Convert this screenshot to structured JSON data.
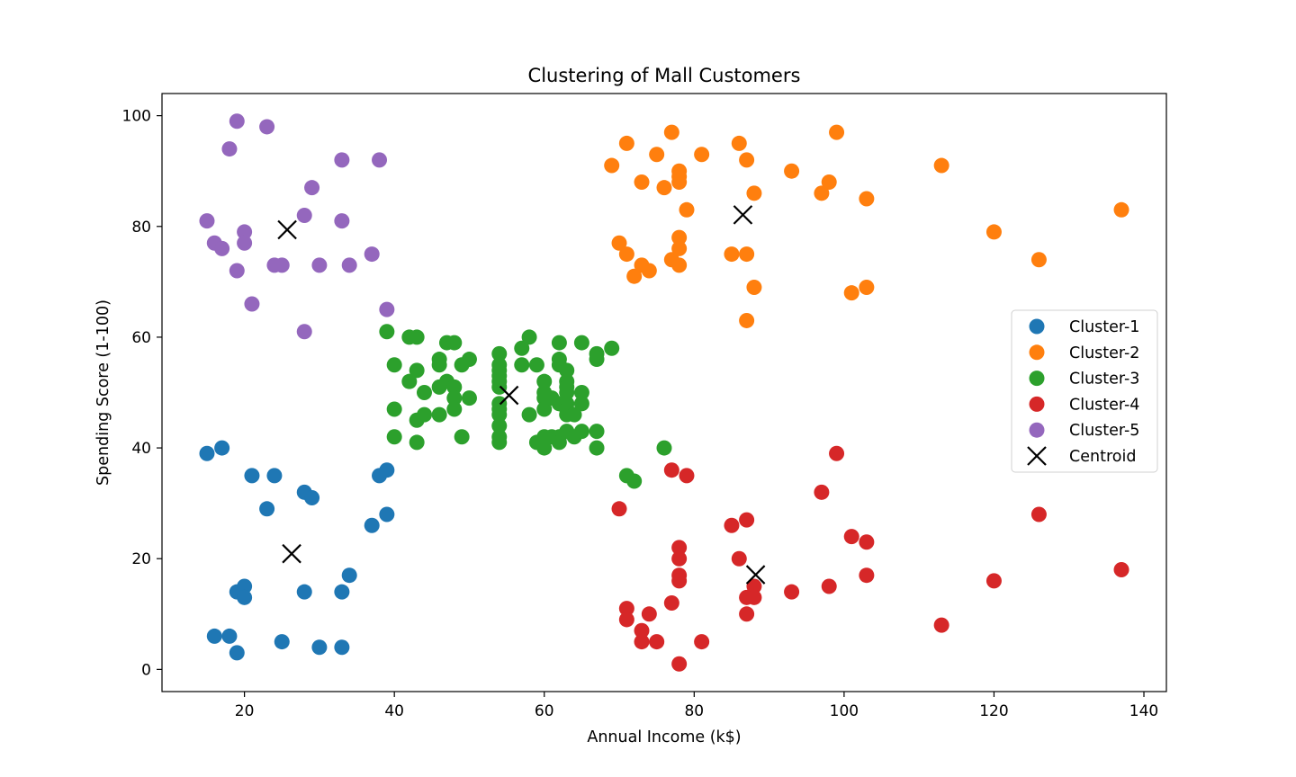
{
  "chart_data": {
    "type": "scatter",
    "title": "Clustering of Mall Customers",
    "xlabel": "Annual Income (k$)",
    "ylabel": "Spending Score (1-100)",
    "xlim": [
      9,
      143
    ],
    "ylim": [
      -4,
      104
    ],
    "xticks": [
      "20",
      "40",
      "60",
      "80",
      "100",
      "120",
      "140"
    ],
    "yticks": [
      "0",
      "20",
      "40",
      "60",
      "80",
      "100"
    ],
    "grid": false,
    "legend_position": "center-right",
    "series": [
      {
        "name": "Cluster-1",
        "color": "#1f77b4",
        "points": [
          [
            15,
            39
          ],
          [
            16,
            6
          ],
          [
            17,
            40
          ],
          [
            18,
            6
          ],
          [
            19,
            3
          ],
          [
            19,
            14
          ],
          [
            20,
            15
          ],
          [
            20,
            13
          ],
          [
            21,
            35
          ],
          [
            23,
            29
          ],
          [
            24,
            35
          ],
          [
            25,
            5
          ],
          [
            28,
            32
          ],
          [
            28,
            14
          ],
          [
            29,
            31
          ],
          [
            30,
            4
          ],
          [
            33,
            4
          ],
          [
            33,
            14
          ],
          [
            34,
            17
          ],
          [
            37,
            26
          ],
          [
            38,
            35
          ],
          [
            39,
            36
          ],
          [
            39,
            28
          ]
        ]
      },
      {
        "name": "Cluster-2",
        "color": "#ff7f0e",
        "points": [
          [
            69,
            91
          ],
          [
            70,
            77
          ],
          [
            71,
            95
          ],
          [
            71,
            75
          ],
          [
            72,
            71
          ],
          [
            73,
            88
          ],
          [
            73,
            73
          ],
          [
            74,
            72
          ],
          [
            75,
            93
          ],
          [
            76,
            87
          ],
          [
            77,
            97
          ],
          [
            77,
            74
          ],
          [
            78,
            90
          ],
          [
            78,
            89
          ],
          [
            78,
            88
          ],
          [
            78,
            78
          ],
          [
            78,
            76
          ],
          [
            78,
            73
          ],
          [
            79,
            83
          ],
          [
            81,
            93
          ],
          [
            85,
            75
          ],
          [
            86,
            95
          ],
          [
            87,
            92
          ],
          [
            87,
            75
          ],
          [
            87,
            63
          ],
          [
            88,
            86
          ],
          [
            88,
            69
          ],
          [
            93,
            90
          ],
          [
            97,
            86
          ],
          [
            98,
            88
          ],
          [
            99,
            97
          ],
          [
            101,
            68
          ],
          [
            103,
            85
          ],
          [
            103,
            69
          ],
          [
            113,
            91
          ],
          [
            120,
            79
          ],
          [
            126,
            74
          ],
          [
            137,
            83
          ]
        ]
      },
      {
        "name": "Cluster-3",
        "color": "#2ca02c",
        "points": [
          [
            39,
            61
          ],
          [
            40,
            55
          ],
          [
            40,
            47
          ],
          [
            40,
            42
          ],
          [
            42,
            60
          ],
          [
            42,
            52
          ],
          [
            43,
            60
          ],
          [
            43,
            54
          ],
          [
            43,
            45
          ],
          [
            43,
            41
          ],
          [
            44,
            50
          ],
          [
            44,
            46
          ],
          [
            46,
            56
          ],
          [
            46,
            55
          ],
          [
            46,
            51
          ],
          [
            46,
            46
          ],
          [
            47,
            59
          ],
          [
            47,
            52
          ],
          [
            48,
            59
          ],
          [
            48,
            51
          ],
          [
            48,
            49
          ],
          [
            48,
            47
          ],
          [
            49,
            55
          ],
          [
            49,
            42
          ],
          [
            50,
            56
          ],
          [
            50,
            49
          ],
          [
            54,
            57
          ],
          [
            54,
            55
          ],
          [
            54,
            54
          ],
          [
            54,
            53
          ],
          [
            54,
            52
          ],
          [
            54,
            51
          ],
          [
            54,
            48
          ],
          [
            54,
            47
          ],
          [
            54,
            46
          ],
          [
            54,
            44
          ],
          [
            54,
            42
          ],
          [
            54,
            41
          ],
          [
            57,
            58
          ],
          [
            57,
            55
          ],
          [
            58,
            60
          ],
          [
            58,
            46
          ],
          [
            59,
            55
          ],
          [
            59,
            41
          ],
          [
            60,
            52
          ],
          [
            60,
            50
          ],
          [
            60,
            49
          ],
          [
            60,
            47
          ],
          [
            60,
            42
          ],
          [
            60,
            40
          ],
          [
            61,
            49
          ],
          [
            61,
            42
          ],
          [
            62,
            59
          ],
          [
            62,
            56
          ],
          [
            62,
            55
          ],
          [
            62,
            48
          ],
          [
            62,
            42
          ],
          [
            62,
            41
          ],
          [
            63,
            54
          ],
          [
            63,
            52
          ],
          [
            63,
            51
          ],
          [
            63,
            50
          ],
          [
            63,
            48
          ],
          [
            63,
            47
          ],
          [
            63,
            46
          ],
          [
            63,
            43
          ],
          [
            64,
            46
          ],
          [
            64,
            42
          ],
          [
            65,
            59
          ],
          [
            65,
            50
          ],
          [
            65,
            48
          ],
          [
            65,
            43
          ],
          [
            67,
            57
          ],
          [
            67,
            56
          ],
          [
            67,
            43
          ],
          [
            67,
            40
          ],
          [
            69,
            58
          ],
          [
            71,
            35
          ],
          [
            72,
            34
          ],
          [
            76,
            40
          ]
        ]
      },
      {
        "name": "Cluster-4",
        "color": "#d62728",
        "points": [
          [
            70,
            29
          ],
          [
            71,
            11
          ],
          [
            71,
            9
          ],
          [
            73,
            7
          ],
          [
            73,
            5
          ],
          [
            74,
            10
          ],
          [
            75,
            5
          ],
          [
            77,
            36
          ],
          [
            77,
            12
          ],
          [
            78,
            22
          ],
          [
            78,
            20
          ],
          [
            78,
            17
          ],
          [
            78,
            16
          ],
          [
            78,
            1
          ],
          [
            79,
            35
          ],
          [
            81,
            5
          ],
          [
            85,
            26
          ],
          [
            86,
            20
          ],
          [
            87,
            27
          ],
          [
            87,
            13
          ],
          [
            87,
            10
          ],
          [
            88,
            15
          ],
          [
            88,
            13
          ],
          [
            93,
            14
          ],
          [
            97,
            32
          ],
          [
            98,
            15
          ],
          [
            99,
            39
          ],
          [
            101,
            24
          ],
          [
            103,
            23
          ],
          [
            103,
            17
          ],
          [
            113,
            8
          ],
          [
            120,
            16
          ],
          [
            126,
            28
          ],
          [
            137,
            18
          ]
        ]
      },
      {
        "name": "Cluster-5",
        "color": "#9467bd",
        "points": [
          [
            15,
            81
          ],
          [
            16,
            77
          ],
          [
            17,
            76
          ],
          [
            18,
            94
          ],
          [
            19,
            99
          ],
          [
            19,
            72
          ],
          [
            20,
            79
          ],
          [
            20,
            77
          ],
          [
            21,
            66
          ],
          [
            23,
            98
          ],
          [
            24,
            73
          ],
          [
            25,
            73
          ],
          [
            28,
            82
          ],
          [
            28,
            61
          ],
          [
            29,
            87
          ],
          [
            30,
            73
          ],
          [
            33,
            92
          ],
          [
            33,
            81
          ],
          [
            34,
            73
          ],
          [
            37,
            75
          ],
          [
            38,
            92
          ],
          [
            39,
            65
          ]
        ]
      }
    ],
    "centroids": {
      "name": "Centroid",
      "color": "#000000",
      "points": [
        [
          26.3,
          20.9
        ],
        [
          86.5,
          82.1
        ],
        [
          55.3,
          49.5
        ],
        [
          88.2,
          17.1
        ],
        [
          25.7,
          79.4
        ]
      ]
    }
  }
}
